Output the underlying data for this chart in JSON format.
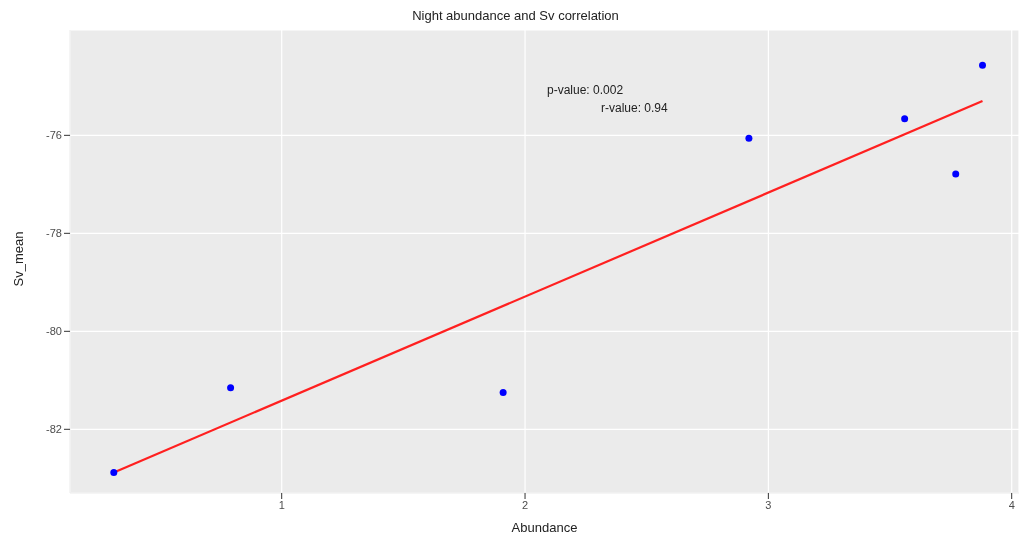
{
  "chart_data": {
    "type": "scatter",
    "title": "Night abundance and Sv correlation",
    "xlabel": "Abundance",
    "ylabel": "Sv_mean",
    "xlim": [
      0.13,
      4.03
    ],
    "xticks": [
      1,
      2,
      3,
      4
    ],
    "ylim": [
      -83.3,
      -73.85
    ],
    "yticks": [
      -82,
      -80,
      -78,
      -76
    ],
    "grid": true,
    "legend": false,
    "annotations": [
      "p-value: 0.002",
      "r-value: 0.94"
    ],
    "series": [
      {
        "color": "#0000ff",
        "marker": "circle",
        "x": [
          0.31,
          0.79,
          1.91,
          2.92,
          3.56,
          3.77,
          3.88
        ],
        "values": [
          -82.88,
          -81.15,
          -81.25,
          -76.06,
          -75.66,
          -76.79,
          -74.57
        ]
      },
      {
        "type": "line",
        "color": "#ff2020",
        "marker": "none",
        "x": [
          0.31,
          3.88
        ],
        "values": [
          -82.88,
          -75.3
        ]
      }
    ]
  }
}
